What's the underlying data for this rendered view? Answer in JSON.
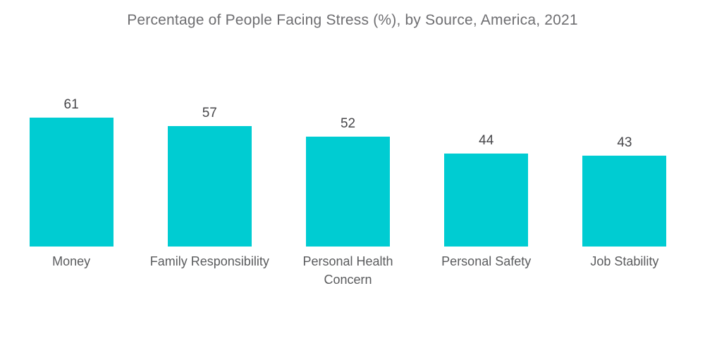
{
  "chart_data": {
    "type": "bar",
    "title": "Percentage of People Facing Stress (%), by Source, America, 2021",
    "categories": [
      "Money",
      "Family Responsibility",
      "Personal Health\nConcern",
      "Personal Safety",
      "Job Stability"
    ],
    "values": [
      61,
      57,
      52,
      44,
      43
    ],
    "xlabel": "",
    "ylabel": "",
    "ylim": [
      0,
      61
    ],
    "grid": false,
    "legend_position": "none",
    "value_labels_shown": true,
    "axes_shown": false
  },
  "colors": {
    "bar": "#00CCD2",
    "title_text": "#6e6e71",
    "value_text": "#464649",
    "category_text": "#5a5b5d",
    "background": "#ffffff"
  }
}
